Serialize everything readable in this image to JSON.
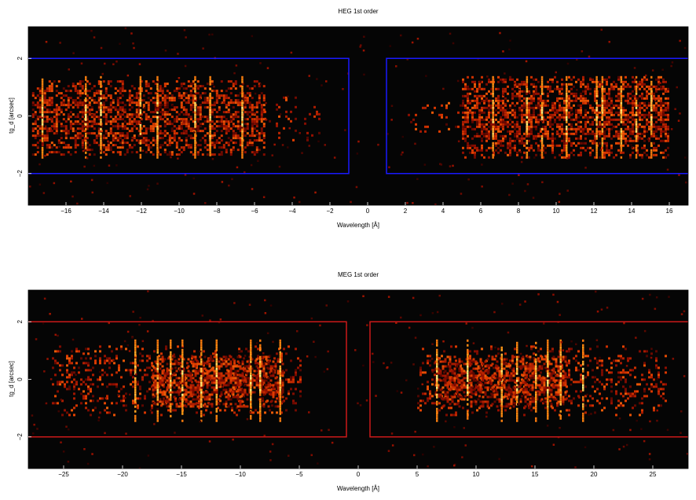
{
  "chart_data": [
    {
      "type": "heatmap",
      "title": "HEG 1st order",
      "xlabel": "Wavelength [Å]",
      "ylabel": "tg_d [arcsec]",
      "xlim": [
        -18,
        17
      ],
      "ylim": [
        -3.1,
        3.1
      ],
      "xticks": [
        -16,
        -14,
        -12,
        -10,
        -8,
        -6,
        -4,
        -2,
        0,
        2,
        4,
        6,
        8,
        10,
        12,
        14,
        16
      ],
      "xtick_labels": [
        "−16",
        "−14",
        "−12",
        "−10",
        "−8",
        "−6",
        "−4",
        "−2",
        "0",
        "2",
        "4",
        "6",
        "8",
        "10",
        "12",
        "14",
        "16"
      ],
      "yticks": [
        -2,
        0,
        2
      ],
      "ytick_labels": [
        "−2",
        "0",
        "2"
      ],
      "colormap": "black-red-orange-yellow",
      "background": "#050505",
      "regions": [
        {
          "x": [
            -19,
            -1
          ],
          "y": [
            -2,
            2
          ],
          "color": "#1a1aff"
        },
        {
          "x": [
            1,
            19
          ],
          "y": [
            -2,
            2
          ],
          "color": "#1a1aff"
        }
      ],
      "bands": [
        {
          "x": [
            -17.8,
            -5.5
          ],
          "y": [
            -1.3,
            1.3
          ],
          "density": 0.55
        },
        {
          "x": [
            -5.5,
            -2.5
          ],
          "y": [
            -0.8,
            0.8
          ],
          "density": 0.1
        },
        {
          "x": [
            2,
            5
          ],
          "y": [
            -0.5,
            0.5
          ],
          "density": 0.12
        },
        {
          "x": [
            5,
            16
          ],
          "y": [
            -1.4,
            1.4
          ],
          "density": 0.6
        }
      ],
      "lines": [
        -17.3,
        -15.0,
        -14.2,
        -12.1,
        -11.2,
        -9.2,
        -8.4,
        -6.7,
        6.6,
        8.4,
        9.2,
        10.5,
        12.1,
        12.4,
        13.4,
        14.2,
        15.0
      ]
    },
    {
      "type": "heatmap",
      "title": "MEG 1st order",
      "xlabel": "Wavelength [Å]",
      "ylabel": "tg_d [arcsec]",
      "xlim": [
        -28,
        28
      ],
      "ylim": [
        -3.1,
        3.1
      ],
      "xticks": [
        -25,
        -20,
        -15,
        -10,
        -5,
        0,
        5,
        10,
        15,
        20,
        25
      ],
      "xtick_labels": [
        "−25",
        "−20",
        "−15",
        "−10",
        "−5",
        "0",
        "5",
        "10",
        "15",
        "20",
        "25"
      ],
      "yticks": [
        -2,
        0,
        2
      ],
      "ytick_labels": [
        "−2",
        "0",
        "2"
      ],
      "colormap": "black-red-orange-yellow",
      "background": "#050505",
      "regions": [
        {
          "x": [
            -29,
            -1
          ],
          "y": [
            -2,
            2
          ],
          "color": "#cc1a1a"
        },
        {
          "x": [
            1,
            29
          ],
          "y": [
            -2,
            2
          ],
          "color": "#cc1a1a"
        }
      ],
      "bands": [
        {
          "x": [
            -26,
            -5
          ],
          "y": [
            -1.2,
            1.2
          ],
          "density": 0.25
        },
        {
          "x": [
            -17.5,
            -6.5
          ],
          "y": [
            -0.9,
            0.9
          ],
          "density": 0.6
        },
        {
          "x": [
            5,
            26
          ],
          "y": [
            -1.2,
            1.2
          ],
          "density": 0.25
        },
        {
          "x": [
            6.5,
            17.5
          ],
          "y": [
            -0.9,
            0.9
          ],
          "density": 0.6
        }
      ],
      "lines": [
        -19.0,
        -17.1,
        -16.0,
        -15.0,
        -13.4,
        -12.1,
        -9.2,
        -8.4,
        -6.7,
        6.6,
        9.2,
        12.1,
        13.4,
        15.0,
        16.0,
        17.1,
        19.0
      ]
    }
  ]
}
